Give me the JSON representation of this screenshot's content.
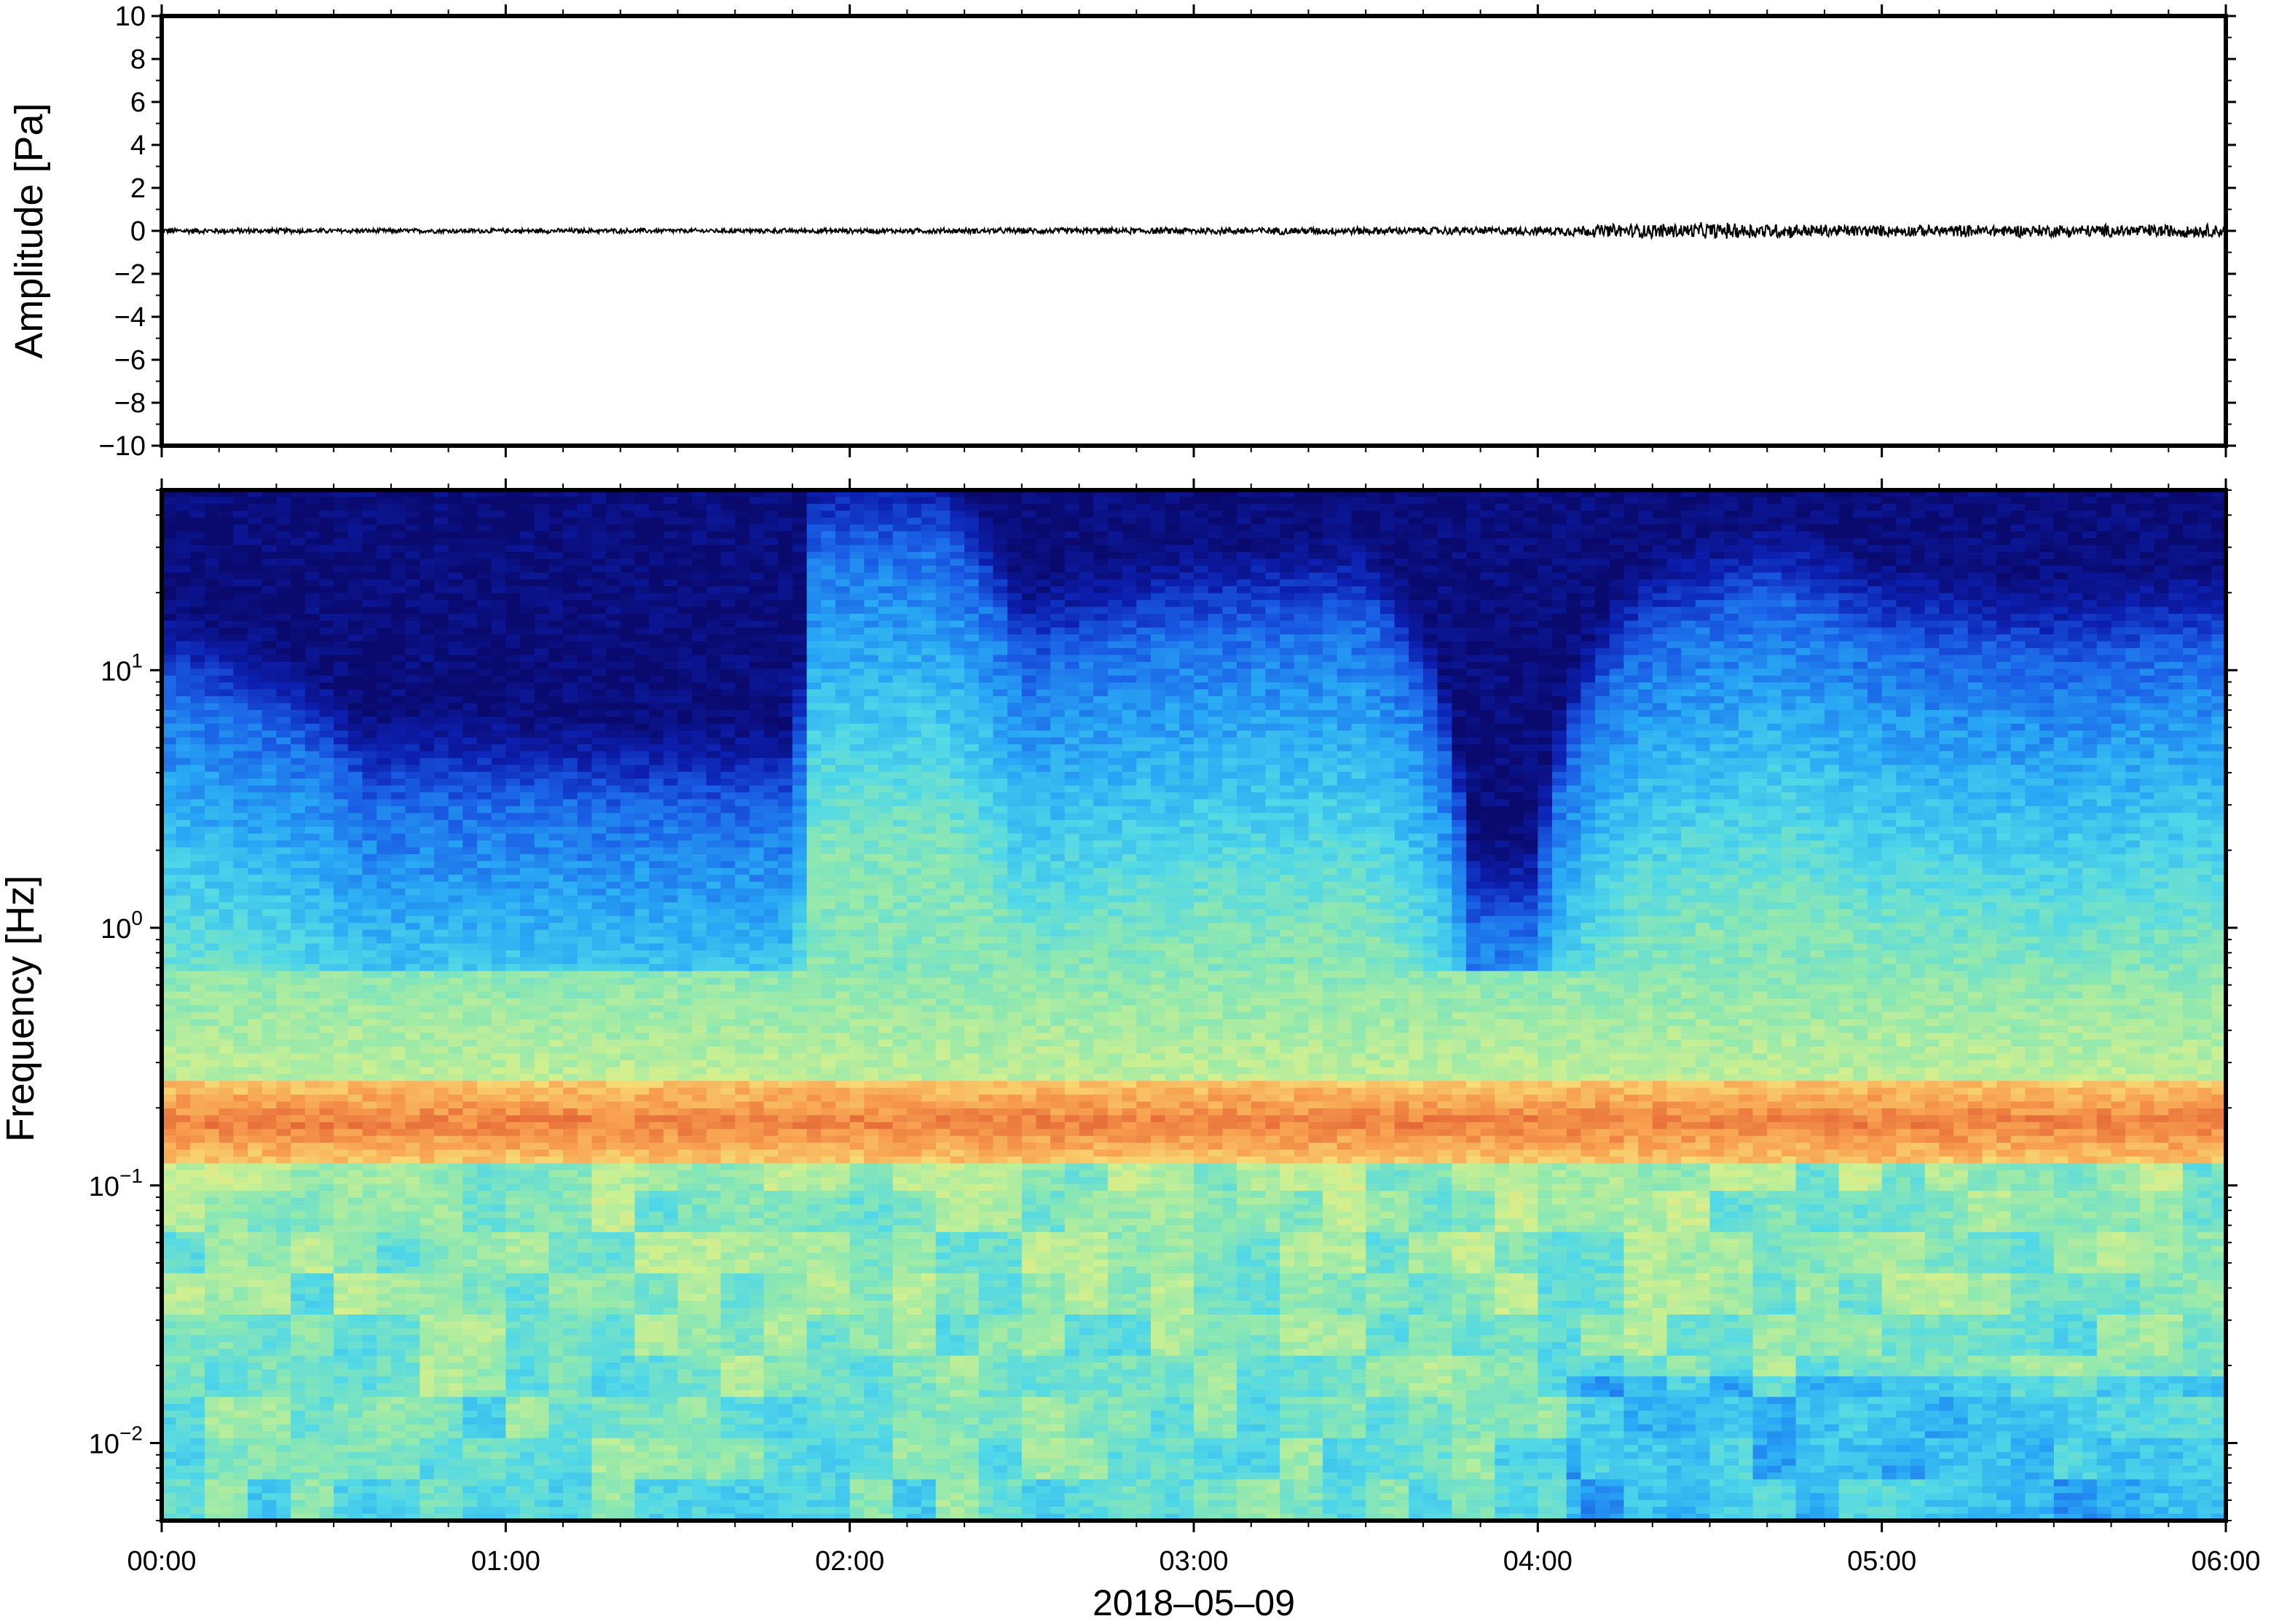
{
  "chart_data": [
    {
      "type": "line",
      "ylabel": "Amplitude [Pa]",
      "ylim": [
        -10,
        10
      ],
      "yticks": [
        10,
        8,
        6,
        4,
        2,
        0,
        -2,
        -4,
        -6,
        -8,
        -10
      ],
      "ytick_labels": [
        "10",
        "8",
        "6",
        "4",
        "2",
        "0",
        "−2",
        "−4",
        "−6",
        "−8",
        "−10"
      ],
      "xlim_hours": [
        0,
        6
      ],
      "line_color": "#000000",
      "series": [
        {
          "amplitude_envelope": {
            "hours": [
              0.0,
              0.5,
              1.0,
              1.5,
              2.0,
              2.5,
              3.0,
              3.5,
              4.0,
              4.2,
              4.4,
              4.6,
              4.8,
              5.0,
              5.5,
              6.0
            ],
            "max_abs_pa": [
              0.15,
              0.12,
              0.12,
              0.12,
              0.13,
              0.15,
              0.18,
              0.2,
              0.22,
              0.35,
              0.4,
              0.42,
              0.35,
              0.3,
              0.32,
              0.35
            ]
          }
        }
      ]
    },
    {
      "type": "heatmap",
      "ylabel": "Frequency [Hz]",
      "y_scale": "log",
      "ylim_hz": [
        0.005,
        50
      ],
      "yticks_hz": [
        10,
        1,
        0.1,
        0.01
      ],
      "ytick_labels": [
        {
          "base": "10",
          "exp": "1"
        },
        {
          "base": "10",
          "exp": "0"
        },
        {
          "base": "10",
          "exp": "−1"
        },
        {
          "base": "10",
          "exp": "−2"
        }
      ],
      "xlabel": "2018–05–09",
      "xlim_hours": [
        0,
        6
      ],
      "xticks_hours": [
        0,
        1,
        2,
        3,
        4,
        5,
        6
      ],
      "xtick_labels": [
        "00:00",
        "01:00",
        "02:00",
        "03:00",
        "04:00",
        "05:00",
        "06:00"
      ],
      "colormap": [
        "#0a0a6e",
        "#0c1fb0",
        "#1a5fe6",
        "#28a8f5",
        "#50d8e8",
        "#8ee8b0",
        "#d0f090",
        "#f8e078",
        "#f8a050",
        "#e05a30"
      ],
      "primary_microseism_band_hz": [
        0.14,
        0.22
      ],
      "upper_noise_edge_hz": {
        "hours": [
          0.0,
          0.3,
          0.6,
          1.0,
          1.5,
          1.85,
          1.9,
          2.25,
          2.5,
          3.0,
          3.5,
          3.8,
          4.0,
          4.3,
          4.7,
          5.0,
          5.5,
          6.0
        ],
        "hz": [
          8,
          6,
          3,
          3,
          2.8,
          2.8,
          30,
          30,
          10,
          14,
          15,
          1,
          1,
          12,
          18,
          12,
          10,
          12
        ]
      }
    }
  ]
}
